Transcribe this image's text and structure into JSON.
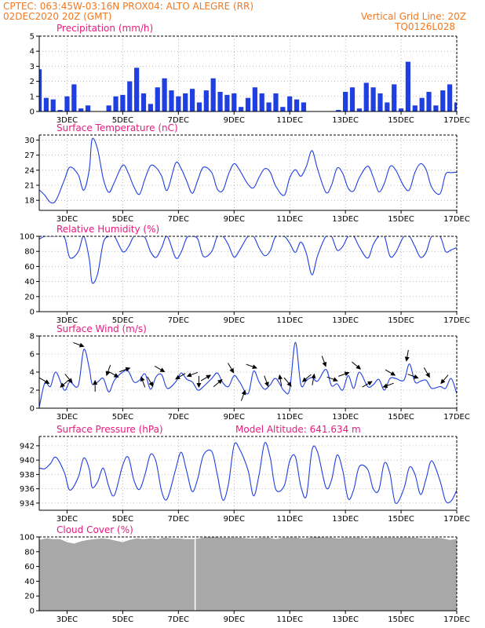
{
  "header": {
    "line1_left": "CPTEC:   063:45W-03:16N   PROX04: ALTO ALEGRE (RR)",
    "line2_left": "02DEC2020 20Z (GMT)",
    "line2_right": "Vertical Grid Line: 20Z",
    "line3_right": "TQ0126L028"
  },
  "colors": {
    "header": "#f07820",
    "title": "#e8197f",
    "line": "#1f3fe0",
    "cloud": "#a8a8a8",
    "arrow": "#000000",
    "axis": "#000000",
    "grid": "#888888"
  },
  "x_ticks": [
    "3DEC",
    "5DEC",
    "7DEC",
    "9DEC",
    "11DEC",
    "13DEC",
    "15DEC",
    "17DEC"
  ],
  "x_range_days": [
    2,
    17
  ],
  "chart_data": [
    {
      "type": "bar",
      "title": "Precipitation (mm/h)",
      "ylim": [
        0,
        5
      ],
      "yticks": [
        0,
        1,
        2,
        3,
        4,
        5
      ],
      "series": [
        {
          "x_days": [
            2.0,
            2.25,
            2.5,
            2.75,
            3.0,
            3.25,
            3.5,
            3.75,
            4.0,
            4.25,
            4.5,
            4.75,
            5.0,
            5.25,
            5.5,
            5.75,
            6.0,
            6.25,
            6.5,
            6.75,
            7.0,
            7.25,
            7.5,
            7.75,
            8.0,
            8.25,
            8.5,
            8.75,
            9.0,
            9.25,
            9.5,
            9.75,
            10.0,
            10.25,
            10.5,
            10.75,
            11.0,
            11.25,
            11.5,
            11.75,
            12.0,
            12.25,
            12.5,
            12.75,
            13.0,
            13.25,
            13.5,
            13.75,
            14.0,
            14.25,
            14.5,
            14.75,
            15.0,
            15.25,
            15.5,
            15.75,
            16.0,
            16.25,
            16.5,
            16.75,
            17.0
          ],
          "values": [
            2.8,
            0.9,
            0.8,
            0.1,
            1.0,
            1.8,
            0.2,
            0.4,
            0.0,
            0.0,
            0.4,
            1.0,
            1.1,
            2.0,
            2.9,
            1.2,
            0.5,
            1.6,
            2.2,
            1.4,
            1.0,
            1.2,
            1.5,
            0.6,
            1.4,
            2.2,
            1.3,
            1.1,
            1.2,
            0.3,
            0.9,
            1.6,
            1.2,
            0.6,
            1.2,
            0.3,
            1.0,
            0.8,
            0.6,
            0.0,
            0.0,
            0.0,
            0.0,
            0.1,
            1.3,
            1.6,
            0.2,
            1.9,
            1.6,
            1.2,
            0.6,
            1.8,
            0.2,
            3.3,
            0.4,
            0.9,
            1.3,
            0.4,
            1.4,
            1.8,
            0.6
          ]
        }
      ]
    },
    {
      "type": "line",
      "title": "Surface Temperature (nC)",
      "ylim": [
        16,
        31
      ],
      "yticks": [
        18,
        21,
        24,
        27,
        30
      ],
      "series": [
        {
          "x_days": [
            2.0,
            2.2,
            2.4,
            2.6,
            2.9,
            3.1,
            3.4,
            3.6,
            3.8,
            3.9,
            4.1,
            4.3,
            4.5,
            4.7,
            5.0,
            5.2,
            5.4,
            5.6,
            5.8,
            6.0,
            6.2,
            6.4,
            6.6,
            6.9,
            7.1,
            7.3,
            7.5,
            7.7,
            7.9,
            8.2,
            8.4,
            8.6,
            8.8,
            9.0,
            9.2,
            9.5,
            9.7,
            9.9,
            10.1,
            10.3,
            10.5,
            10.8,
            11.0,
            11.2,
            11.4,
            11.6,
            11.8,
            12.0,
            12.3,
            12.5,
            12.7,
            12.9,
            13.1,
            13.3,
            13.5,
            13.8,
            14.0,
            14.2,
            14.4,
            14.6,
            14.8,
            15.1,
            15.3,
            15.5,
            15.7,
            15.9,
            16.1,
            16.4,
            16.6,
            16.8,
            17.0
          ],
          "values": [
            20.1,
            19.0,
            17.6,
            18.0,
            22.0,
            24.6,
            23.1,
            20.0,
            24.2,
            30.2,
            28.1,
            22.3,
            19.6,
            21.6,
            25.0,
            23.4,
            20.7,
            19.2,
            22.3,
            24.9,
            24.5,
            22.8,
            20.0,
            25.4,
            24.3,
            21.8,
            19.4,
            22.1,
            24.6,
            23.5,
            20.2,
            20.0,
            23.2,
            25.3,
            24.0,
            21.2,
            20.5,
            22.6,
            24.3,
            23.6,
            20.8,
            19.0,
            22.5,
            24.1,
            22.8,
            24.8,
            27.9,
            24.2,
            19.6,
            21.0,
            24.4,
            23.4,
            20.4,
            19.9,
            22.5,
            24.8,
            22.6,
            19.7,
            21.4,
            24.7,
            24.1,
            20.8,
            20.1,
            23.6,
            25.3,
            24.1,
            20.6,
            19.3,
            23.2,
            23.5,
            23.6
          ]
        }
      ]
    },
    {
      "type": "line",
      "title": "Relative Humidity (%)",
      "ylim": [
        0,
        100
      ],
      "yticks": [
        0,
        20,
        40,
        60,
        80,
        100
      ],
      "series": [
        {
          "x_days": [
            2.0,
            2.2,
            2.4,
            2.6,
            2.9,
            3.1,
            3.4,
            3.6,
            3.8,
            3.9,
            4.1,
            4.3,
            4.5,
            4.7,
            5.0,
            5.2,
            5.4,
            5.6,
            5.8,
            6.0,
            6.2,
            6.4,
            6.6,
            6.9,
            7.1,
            7.3,
            7.5,
            7.7,
            7.9,
            8.2,
            8.4,
            8.6,
            8.8,
            9.0,
            9.2,
            9.5,
            9.7,
            9.9,
            10.1,
            10.3,
            10.5,
            10.8,
            11.0,
            11.2,
            11.4,
            11.6,
            11.8,
            12.0,
            12.3,
            12.5,
            12.7,
            12.9,
            13.1,
            13.3,
            13.5,
            13.8,
            14.0,
            14.2,
            14.4,
            14.6,
            14.8,
            15.1,
            15.3,
            15.5,
            15.7,
            15.9,
            16.1,
            16.4,
            16.6,
            16.8,
            17.0
          ],
          "values": [
            96.3,
            100.0,
            100.0,
            100.0,
            98.9,
            71.7,
            79.4,
            100.0,
            69.4,
            38.3,
            50.5,
            91.5,
            100.0,
            100.0,
            79.8,
            85.8,
            100.0,
            100.0,
            98.3,
            79.5,
            72.0,
            85.0,
            100.0,
            71.6,
            79.1,
            97.9,
            100.0,
            96.0,
            73.2,
            80.1,
            100.0,
            100.0,
            88.3,
            72.3,
            81.7,
            100.0,
            100.0,
            84.4,
            74.3,
            80.7,
            100.0,
            100.0,
            90.7,
            78.6,
            92.4,
            76.8,
            48.9,
            74.3,
            100.0,
            100.0,
            81.7,
            86.4,
            100.0,
            100.0,
            85.8,
            71.0,
            89.1,
            100.0,
            100.0,
            73.6,
            78.0,
            100.0,
            100.0,
            86.1,
            72.0,
            78.9,
            100.0,
            100.0,
            79.9,
            82.0,
            85.0
          ]
        }
      ]
    },
    {
      "type": "line",
      "title": "Surface Wind (m/s)",
      "ylim": [
        0,
        8
      ],
      "yticks": [
        0,
        2,
        4,
        6,
        8
      ],
      "series": [
        {
          "x_days": [
            2.0,
            2.2,
            2.4,
            2.6,
            2.9,
            3.1,
            3.4,
            3.6,
            3.8,
            3.9,
            4.1,
            4.3,
            4.5,
            4.7,
            5.0,
            5.2,
            5.4,
            5.6,
            5.8,
            6.0,
            6.2,
            6.4,
            6.6,
            6.9,
            7.1,
            7.3,
            7.5,
            7.7,
            7.9,
            8.2,
            8.4,
            8.6,
            8.8,
            9.0,
            9.2,
            9.5,
            9.7,
            9.9,
            10.1,
            10.3,
            10.5,
            10.8,
            11.0,
            11.2,
            11.4,
            11.6,
            11.8,
            12.0,
            12.3,
            12.5,
            12.7,
            12.9,
            13.1,
            13.3,
            13.5,
            13.8,
            14.0,
            14.2,
            14.4,
            14.6,
            14.8,
            15.1,
            15.3,
            15.5,
            15.7,
            15.9,
            16.1,
            16.4,
            16.6,
            16.8,
            17.0
          ],
          "values": [
            0.1,
            2.8,
            2.4,
            4.0,
            2.0,
            2.9,
            2.5,
            6.5,
            4.4,
            2.7,
            2.9,
            3.3,
            1.8,
            3.1,
            4.0,
            4.1,
            2.9,
            3.1,
            3.8,
            2.1,
            3.5,
            3.7,
            2.2,
            2.9,
            3.9,
            3.2,
            2.9,
            2.0,
            2.4,
            3.3,
            3.9,
            2.8,
            2.4,
            3.6,
            2.9,
            1.6,
            4.1,
            2.9,
            2.1,
            2.6,
            3.3,
            1.9,
            2.1,
            7.3,
            2.6,
            3.1,
            3.4,
            3.0,
            4.3,
            2.5,
            2.7,
            2.0,
            3.6,
            2.2,
            4.0,
            2.4,
            2.6,
            3.2,
            2.0,
            3.3,
            3.3,
            3.1,
            4.9,
            2.9,
            3.0,
            3.1,
            2.2,
            2.4,
            2.2,
            3.3,
            1.6
          ]
        }
      ],
      "vectors_deg_from_east": [
        150,
        40,
        130,
        160,
        270,
        70,
        150,
        200,
        290,
        120,
        150,
        30,
        20,
        90,
        210,
        220,
        120,
        250,
        160,
        110,
        280,
        130,
        40,
        260,
        110,
        160,
        200,
        140,
        210,
        20,
        150,
        80,
        160,
        120,
        50
      ]
    },
    {
      "type": "line",
      "title": "Surface Pressure (hPa)",
      "annotation": "Model Altitude: 641.634 m",
      "ylim": [
        933,
        943.3
      ],
      "yticks": [
        934,
        936,
        938,
        940,
        942
      ],
      "series": [
        {
          "x_days": [
            2.0,
            2.2,
            2.4,
            2.6,
            2.9,
            3.1,
            3.4,
            3.6,
            3.8,
            3.9,
            4.1,
            4.3,
            4.5,
            4.7,
            5.0,
            5.2,
            5.4,
            5.6,
            5.8,
            6.0,
            6.2,
            6.4,
            6.6,
            6.9,
            7.1,
            7.3,
            7.5,
            7.7,
            7.9,
            8.2,
            8.4,
            8.6,
            8.8,
            9.0,
            9.2,
            9.5,
            9.7,
            9.9,
            10.1,
            10.3,
            10.5,
            10.8,
            11.0,
            11.2,
            11.4,
            11.6,
            11.8,
            12.0,
            12.3,
            12.5,
            12.7,
            12.9,
            13.1,
            13.3,
            13.5,
            13.8,
            14.0,
            14.2,
            14.4,
            14.6,
            14.8,
            15.1,
            15.3,
            15.5,
            15.7,
            15.9,
            16.1,
            16.4,
            16.6,
            16.8,
            17.0
          ],
          "values": [
            938.9,
            938.8,
            939.5,
            940.4,
            938.3,
            935.8,
            937.6,
            940.3,
            938.7,
            936.2,
            937.0,
            938.9,
            936.3,
            935.1,
            939.3,
            940.4,
            937.2,
            935.9,
            938.0,
            940.8,
            939.7,
            935.6,
            934.6,
            938.7,
            941.1,
            938.4,
            935.6,
            937.5,
            940.7,
            941.2,
            937.9,
            934.4,
            936.7,
            942.1,
            941.5,
            938.6,
            935.0,
            938.0,
            942.4,
            940.3,
            935.9,
            936.4,
            939.9,
            940.5,
            936.3,
            935.0,
            941.4,
            941.1,
            936.2,
            937.2,
            940.7,
            938.6,
            934.6,
            935.9,
            939.1,
            938.7,
            936.0,
            935.8,
            939.6,
            938.1,
            934.0,
            936.0,
            939.0,
            938.0,
            935.2,
            937.4,
            939.9,
            937.1,
            934.3,
            934.3,
            935.8
          ]
        }
      ]
    },
    {
      "type": "area",
      "title": "Cloud Cover (%)",
      "ylim": [
        0,
        100
      ],
      "yticks": [
        0,
        20,
        40,
        60,
        80,
        100
      ],
      "series": [
        {
          "x_days": [
            2.0,
            2.25,
            2.5,
            2.75,
            3.0,
            3.25,
            3.5,
            3.75,
            4.0,
            4.25,
            4.5,
            4.75,
            5.0,
            5.25,
            5.5,
            5.75,
            6.0,
            6.25,
            6.5,
            6.75,
            7.0,
            7.25,
            7.5,
            7.75,
            8.0,
            8.25,
            8.5,
            8.75,
            9.0,
            9.25,
            9.5,
            9.75,
            10.0,
            10.25,
            10.5,
            10.75,
            11.0,
            11.25,
            11.5,
            11.75,
            12.0,
            12.25,
            12.5,
            12.75,
            13.0,
            13.25,
            13.5,
            13.75,
            14.0,
            14.25,
            14.5,
            14.75,
            15.0,
            15.25,
            15.5,
            15.75,
            16.0,
            16.25,
            16.5,
            16.75,
            17.0
          ],
          "values": [
            96,
            98,
            97,
            97,
            93,
            91,
            94,
            96,
            97,
            98,
            97,
            95,
            93,
            96,
            98,
            97,
            98,
            97,
            99,
            98,
            98,
            97,
            97,
            98,
            100,
            100,
            99,
            99,
            99,
            99,
            98,
            98,
            99,
            99,
            97,
            99,
            99,
            99,
            98,
            99,
            100,
            99,
            99,
            98,
            99,
            99,
            99,
            98,
            99,
            99,
            99,
            99,
            99,
            99,
            99,
            98,
            98,
            99,
            98,
            96,
            97
          ]
        }
      ]
    }
  ]
}
